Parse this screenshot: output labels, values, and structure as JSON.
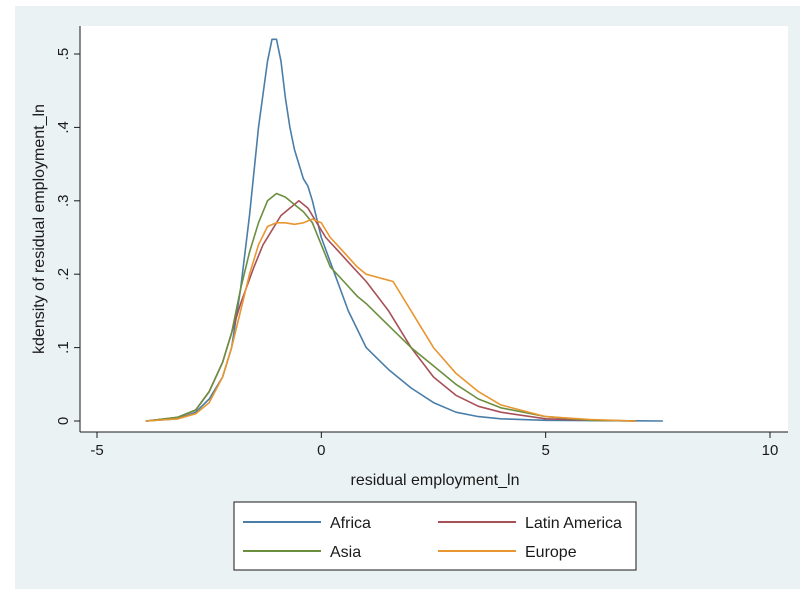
{
  "chart_data": {
    "type": "line",
    "title": "",
    "xlabel": "residual employment_ln",
    "ylabel": "kdensity of residual employment_ln",
    "xlim": [
      -5,
      10
    ],
    "ylim": [
      0,
      0.55
    ],
    "xticks": [
      -5,
      0,
      5,
      10
    ],
    "yticks": [
      0,
      0.1,
      0.2,
      0.3,
      0.4,
      0.5
    ],
    "xtick_labels": [
      "-5",
      "0",
      "5",
      "10"
    ],
    "ytick_labels": [
      "0",
      ".1",
      ".2",
      ".3",
      ".4",
      ".5"
    ],
    "grid": false,
    "legend_position": "bottom",
    "series": [
      {
        "name": "Africa",
        "color": "#4a7ea8",
        "x": [
          -3.9,
          -3.2,
          -2.8,
          -2.5,
          -2.2,
          -2.0,
          -1.8,
          -1.6,
          -1.4,
          -1.2,
          -1.1,
          -1.0,
          -0.9,
          -0.8,
          -0.7,
          -0.6,
          -0.5,
          -0.4,
          -0.3,
          -0.2,
          0.0,
          0.3,
          0.6,
          1.0,
          1.5,
          2.0,
          2.5,
          3.0,
          3.5,
          4.0,
          5.0,
          6.0,
          7.6
        ],
        "y": [
          0,
          0.003,
          0.012,
          0.03,
          0.06,
          0.1,
          0.18,
          0.28,
          0.4,
          0.49,
          0.52,
          0.52,
          0.49,
          0.44,
          0.4,
          0.37,
          0.35,
          0.33,
          0.32,
          0.3,
          0.25,
          0.2,
          0.15,
          0.1,
          0.07,
          0.045,
          0.025,
          0.012,
          0.006,
          0.003,
          0.001,
          0.0005,
          0
        ]
      },
      {
        "name": "Latin America",
        "color": "#a85058",
        "x": [
          -3.9,
          -3.2,
          -2.8,
          -2.5,
          -2.2,
          -2.0,
          -1.8,
          -1.5,
          -1.3,
          -1.1,
          -0.9,
          -0.7,
          -0.5,
          -0.3,
          -0.1,
          0.1,
          0.4,
          0.7,
          1.0,
          1.5,
          2.0,
          2.5,
          3.0,
          3.5,
          4.0,
          5.0,
          6.0,
          7.0
        ],
        "y": [
          0,
          0.005,
          0.015,
          0.04,
          0.08,
          0.12,
          0.16,
          0.21,
          0.24,
          0.26,
          0.28,
          0.29,
          0.3,
          0.29,
          0.27,
          0.25,
          0.23,
          0.21,
          0.19,
          0.15,
          0.1,
          0.06,
          0.035,
          0.02,
          0.012,
          0.003,
          0.001,
          0
        ]
      },
      {
        "name": "Asia",
        "color": "#6b8f3e",
        "x": [
          -3.9,
          -3.2,
          -2.8,
          -2.5,
          -2.2,
          -2.0,
          -1.8,
          -1.6,
          -1.4,
          -1.2,
          -1.0,
          -0.8,
          -0.6,
          -0.4,
          -0.2,
          0.0,
          0.2,
          0.5,
          0.8,
          1.0,
          1.5,
          2.0,
          2.5,
          3.0,
          3.5,
          4.0,
          5.0,
          6.0,
          7.0
        ],
        "y": [
          0,
          0.005,
          0.015,
          0.04,
          0.08,
          0.12,
          0.18,
          0.23,
          0.27,
          0.3,
          0.31,
          0.305,
          0.295,
          0.285,
          0.27,
          0.24,
          0.21,
          0.19,
          0.17,
          0.16,
          0.13,
          0.1,
          0.075,
          0.05,
          0.03,
          0.018,
          0.006,
          0.001,
          0
        ]
      },
      {
        "name": "Europe",
        "color": "#e8962f",
        "x": [
          -3.9,
          -3.2,
          -2.8,
          -2.5,
          -2.2,
          -2.0,
          -1.8,
          -1.6,
          -1.4,
          -1.2,
          -1.0,
          -0.8,
          -0.6,
          -0.4,
          -0.2,
          0.0,
          0.2,
          0.5,
          0.8,
          1.0,
          1.3,
          1.6,
          2.0,
          2.5,
          3.0,
          3.5,
          4.0,
          5.0,
          6.0,
          7.0
        ],
        "y": [
          0,
          0.003,
          0.01,
          0.025,
          0.06,
          0.1,
          0.15,
          0.2,
          0.24,
          0.265,
          0.27,
          0.27,
          0.268,
          0.27,
          0.275,
          0.27,
          0.25,
          0.23,
          0.21,
          0.2,
          0.195,
          0.19,
          0.15,
          0.1,
          0.065,
          0.04,
          0.022,
          0.006,
          0.002,
          0
        ]
      }
    ]
  }
}
